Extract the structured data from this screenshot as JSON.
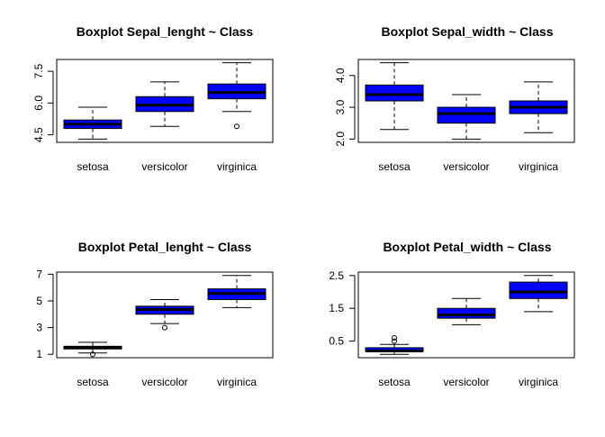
{
  "chart_data": [
    {
      "type": "boxplot",
      "title": "Boxplot  Sepal_lenght ~ Class",
      "categories": [
        "setosa",
        "versicolor",
        "virginica"
      ],
      "box_color": "#0000ff",
      "ylim": [
        4.3,
        7.9
      ],
      "yticks": [
        4.5,
        6.0,
        7.5
      ],
      "ytick_labels": [
        "4.5",
        "6.0",
        "7.5"
      ],
      "boxes": [
        {
          "whisker_low": 4.3,
          "q1": 4.8,
          "median": 5.0,
          "q3": 5.2,
          "whisker_high": 5.8,
          "outliers": []
        },
        {
          "whisker_low": 4.9,
          "q1": 5.6,
          "median": 5.9,
          "q3": 6.3,
          "whisker_high": 7.0,
          "outliers": []
        },
        {
          "whisker_low": 5.6,
          "q1": 6.2,
          "median": 6.5,
          "q3": 6.9,
          "whisker_high": 7.9,
          "outliers": [
            4.9
          ]
        }
      ]
    },
    {
      "type": "boxplot",
      "title": "Boxplot  Sepal_width ~ Class",
      "categories": [
        "setosa",
        "versicolor",
        "virginica"
      ],
      "box_color": "#0000ff",
      "ylim": [
        2.0,
        4.4
      ],
      "yticks": [
        2.0,
        3.0,
        4.0
      ],
      "ytick_labels": [
        "2.0",
        "3.0",
        "4.0"
      ],
      "boxes": [
        {
          "whisker_low": 2.3,
          "q1": 3.2,
          "median": 3.4,
          "q3": 3.7,
          "whisker_high": 4.4,
          "outliers": []
        },
        {
          "whisker_low": 2.0,
          "q1": 2.5,
          "median": 2.8,
          "q3": 3.0,
          "whisker_high": 3.4,
          "outliers": []
        },
        {
          "whisker_low": 2.2,
          "q1": 2.8,
          "median": 3.0,
          "q3": 3.2,
          "whisker_high": 3.8,
          "outliers": []
        }
      ]
    },
    {
      "type": "boxplot",
      "title": "Boxplot  Petal_lenght ~ Class",
      "categories": [
        "setosa",
        "versicolor",
        "virginica"
      ],
      "box_color": "#0000ff",
      "ylim": [
        1.0,
        6.9
      ],
      "yticks": [
        1,
        3,
        5,
        7
      ],
      "ytick_labels": [
        "1",
        "3",
        "5",
        "7"
      ],
      "boxes": [
        {
          "whisker_low": 1.1,
          "q1": 1.4,
          "median": 1.5,
          "q3": 1.6,
          "whisker_high": 1.9,
          "outliers": [
            1.0
          ]
        },
        {
          "whisker_low": 3.3,
          "q1": 4.0,
          "median": 4.35,
          "q3": 4.6,
          "whisker_high": 5.1,
          "outliers": [
            3.0
          ]
        },
        {
          "whisker_low": 4.5,
          "q1": 5.1,
          "median": 5.55,
          "q3": 5.9,
          "whisker_high": 6.9,
          "outliers": []
        }
      ]
    },
    {
      "type": "boxplot",
      "title": "Boxplot  Petal_width ~ Class",
      "categories": [
        "setosa",
        "versicolor",
        "virginica"
      ],
      "box_color": "#0000ff",
      "ylim": [
        0.1,
        2.5
      ],
      "yticks": [
        0.5,
        1.5,
        2.5
      ],
      "ytick_labels": [
        "0.5",
        "1.5",
        "2.5"
      ],
      "boxes": [
        {
          "whisker_low": 0.1,
          "q1": 0.2,
          "median": 0.2,
          "q3": 0.3,
          "whisker_high": 0.4,
          "outliers": [
            0.5,
            0.6
          ]
        },
        {
          "whisker_low": 1.0,
          "q1": 1.2,
          "median": 1.3,
          "q3": 1.5,
          "whisker_high": 1.8,
          "outliers": []
        },
        {
          "whisker_low": 1.4,
          "q1": 1.8,
          "median": 2.0,
          "q3": 2.3,
          "whisker_high": 2.5,
          "outliers": []
        }
      ]
    }
  ]
}
